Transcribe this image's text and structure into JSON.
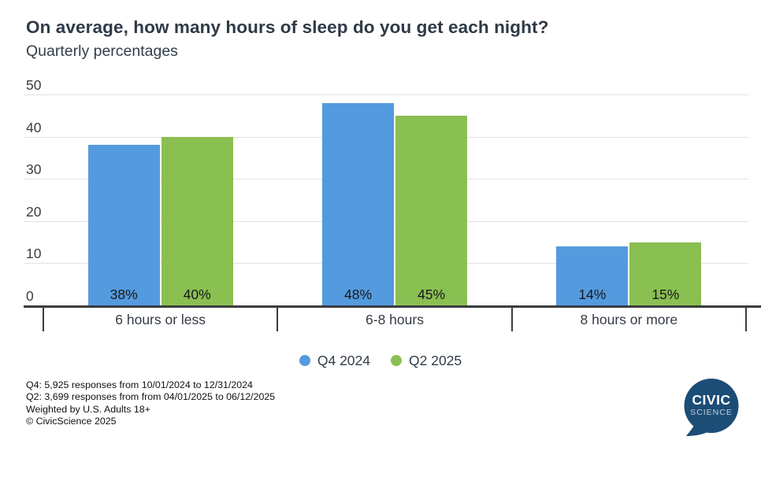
{
  "chart_data": {
    "type": "bar",
    "title": "On average, how many hours of sleep do you get each night?",
    "subtitle": "Quarterly percentages",
    "categories": [
      "6 hours or less",
      "6-8 hours",
      "8 hours or more"
    ],
    "series": [
      {
        "name": "Q4 2024",
        "color": "#549ade",
        "values": [
          38,
          48,
          14
        ],
        "data_labels": [
          "38%",
          "48%",
          "14%"
        ]
      },
      {
        "name": "Q2 2025",
        "color": "#8abf51",
        "values": [
          40,
          45,
          15
        ],
        "data_labels": [
          "40%",
          "45%",
          "15%"
        ]
      }
    ],
    "xlabel": "",
    "ylabel": "",
    "ylim": [
      0,
      50
    ],
    "y_ticks": [
      0,
      10,
      20,
      30,
      40,
      50
    ],
    "grid": true,
    "legend_position": "bottom",
    "bar_label_position": "inside-bottom"
  },
  "footnotes": {
    "lines": [
      "Q4: 5,925 responses from 10/01/2024 to 12/31/2024",
      "Q2: 3,699 responses from from 04/01/2025 to 06/12/2025",
      "Weighted by U.S. Adults 18+",
      "© CivicScience 2025"
    ]
  },
  "logo": {
    "line1": "CIVIC",
    "line2": "SCIENCE",
    "background": "#1c4d77",
    "line1_color": "#ffffff",
    "line2_color": "#c3cedd"
  }
}
